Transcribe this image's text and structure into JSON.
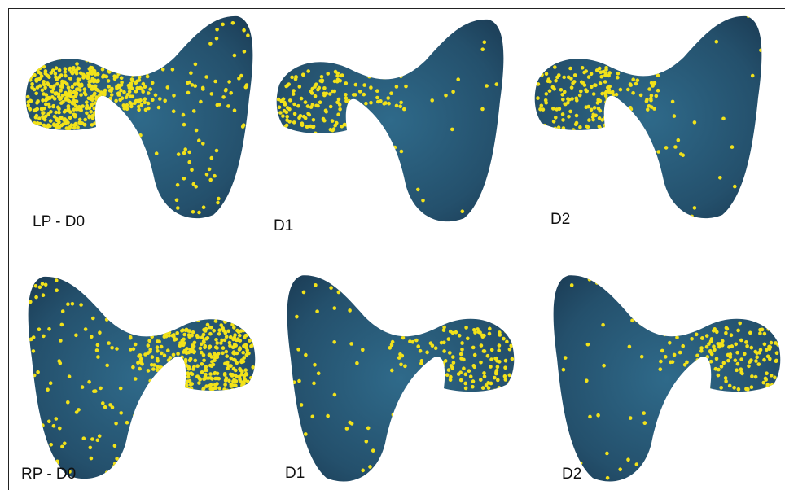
{
  "panels": [
    {
      "label": "LP - D0"
    },
    {
      "label": "D1"
    },
    {
      "label": "D2"
    },
    {
      "label": "RP - D0"
    },
    {
      "label": "D1"
    },
    {
      "label": "D2"
    }
  ]
}
